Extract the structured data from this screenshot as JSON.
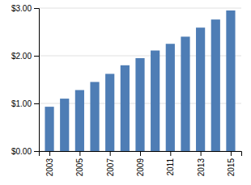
{
  "chart_data": {
    "type": "bar",
    "x": [
      2003,
      2004,
      2005,
      2006,
      2007,
      2008,
      2009,
      2010,
      2011,
      2012,
      2013,
      2014,
      2015
    ],
    "values": [
      0.93,
      1.1,
      1.28,
      1.45,
      1.62,
      1.8,
      1.95,
      2.11,
      2.25,
      2.4,
      2.59,
      2.76,
      2.95
    ],
    "color": "#4E7DB5",
    "xlim": [
      2002.3,
      2015.7
    ],
    "xticks": [
      2003,
      2005,
      2007,
      2009,
      2011,
      2013,
      2015
    ],
    "ylim": [
      0,
      3.0
    ],
    "yticks": [
      {
        "value": 0.0,
        "label": "$0.00"
      },
      {
        "value": 1.0,
        "label": "$1.00"
      },
      {
        "value": 2.0,
        "label": "$2.00"
      },
      {
        "value": 3.0,
        "label": "$3.00"
      }
    ],
    "grid": true
  }
}
